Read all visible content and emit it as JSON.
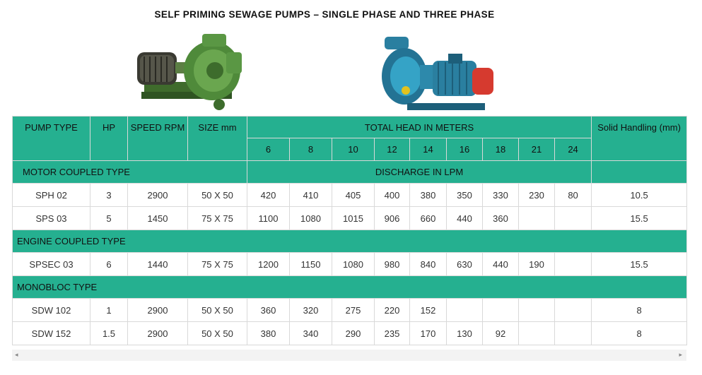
{
  "title": "SELF PRIMING SEWAGE PUMPS – SINGLE PHASE AND THREE PHASE",
  "images": [
    {
      "icon": "motor-coupled-pump-image",
      "color": "#4f8a3a"
    },
    {
      "icon": "monobloc-pump-image",
      "color": "#2a7fa0"
    }
  ],
  "colors": {
    "header": "#25b090"
  },
  "table": {
    "headers": {
      "pump_type": "PUMP TYPE",
      "hp": "HP",
      "speed": "SPEED RPM",
      "size": "SIZE mm",
      "total_head": "TOTAL HEAD IN METERS",
      "solid": "Solid Handling (mm)",
      "discharge": "DISCHARGE IN LPM",
      "heads": [
        "6",
        "8",
        "10",
        "12",
        "14",
        "16",
        "18",
        "21",
        "24"
      ]
    },
    "sections": [
      {
        "title": "MOTOR COUPLED TYPE",
        "rows": [
          {
            "type": "SPH 02",
            "hp": "3",
            "speed": "2900",
            "size": "50 X 50",
            "discharge": [
              "420",
              "410",
              "405",
              "400",
              "380",
              "350",
              "330",
              "230",
              "80"
            ],
            "solid": "10.5"
          },
          {
            "type": "SPS 03",
            "hp": "5",
            "speed": "1450",
            "size": "75 X 75",
            "discharge": [
              "1100",
              "1080",
              "1015",
              "906",
              "660",
              "440",
              "360",
              "",
              ""
            ],
            "solid": "15.5"
          }
        ]
      },
      {
        "title": "ENGINE COUPLED  TYPE",
        "rows": [
          {
            "type": "SPSEC 03",
            "hp": "6",
            "speed": "1440",
            "size": "75 X 75",
            "discharge": [
              "1200",
              "1150",
              "1080",
              "980",
              "840",
              "630",
              "440",
              "190",
              ""
            ],
            "solid": "15.5"
          }
        ]
      },
      {
        "title": "MONOBLOC TYPE",
        "rows": [
          {
            "type": "SDW 102",
            "hp": "1",
            "speed": "2900",
            "size": "50 X 50",
            "discharge": [
              "360",
              "320",
              "275",
              "220",
              "152",
              "",
              "",
              "",
              ""
            ],
            "solid": "8"
          },
          {
            "type": "SDW 152",
            "hp": "1.5",
            "speed": "2900",
            "size": "50 X 50",
            "discharge": [
              "380",
              "340",
              "290",
              "235",
              "170",
              "130",
              "92",
              "",
              ""
            ],
            "solid": "8"
          }
        ]
      }
    ]
  },
  "scrollbar": {
    "left_arrow": "◂",
    "right_arrow": "▸"
  }
}
